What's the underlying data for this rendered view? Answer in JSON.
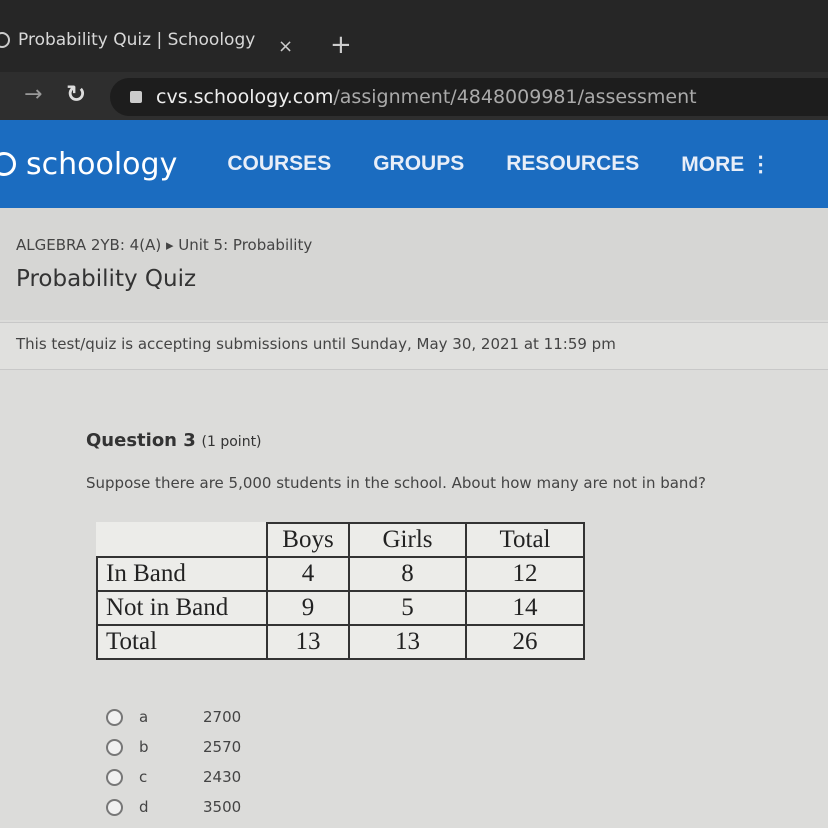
{
  "browser": {
    "tab_title": "Probability Quiz | Schoology",
    "close": "×",
    "new_tab": "+",
    "url_host": "cvs.schoology.com",
    "url_path": "/assignment/4848009981/assessment"
  },
  "nav": {
    "logo": "schoology",
    "items": [
      "COURSES",
      "GROUPS",
      "RESOURCES",
      "MORE ⋮"
    ],
    "color": "#1b6cc0"
  },
  "header": {
    "breadcrumb": "ALGEBRA 2YB: 4(A) ▸ Unit 5: Probability",
    "title": "Probability Quiz"
  },
  "notice": "This test/quiz is accepting submissions until Sunday, May 30, 2021 at 11:59 pm",
  "question": {
    "label": "Question 3",
    "points": "(1 point)",
    "text": "Suppose there are 5,000 students in the school. About how many are not in band?",
    "table": {
      "headers": [
        "",
        "Boys",
        "Girls",
        "Total"
      ],
      "rows": [
        [
          "In Band",
          "4",
          "8",
          "12"
        ],
        [
          "Not in Band",
          "9",
          "5",
          "14"
        ],
        [
          "Total",
          "13",
          "13",
          "26"
        ]
      ]
    },
    "options": [
      {
        "letter": "a",
        "value": "2700"
      },
      {
        "letter": "b",
        "value": "2570"
      },
      {
        "letter": "c",
        "value": "2430"
      },
      {
        "letter": "d",
        "value": "3500"
      }
    ]
  }
}
